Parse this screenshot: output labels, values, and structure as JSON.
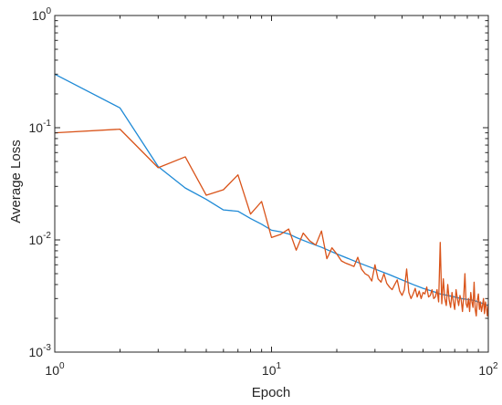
{
  "chart_data": {
    "type": "line",
    "xlabel": "Epoch",
    "ylabel": "Average Loss",
    "xscale": "log",
    "yscale": "log",
    "xlim": [
      1,
      100
    ],
    "ylim": [
      0.001,
      1
    ],
    "grid": false,
    "box": true,
    "x_ticks": [
      {
        "base": "10",
        "exp": "0"
      },
      {
        "base": "10",
        "exp": "1"
      },
      {
        "base": "10",
        "exp": "2"
      }
    ],
    "y_ticks": [
      {
        "base": "10",
        "exp": "-3"
      },
      {
        "base": "10",
        "exp": "-2"
      },
      {
        "base": "10",
        "exp": "-1"
      },
      {
        "base": "10",
        "exp": "0"
      }
    ],
    "series": [
      {
        "color": "#1f8ad6",
        "x": [
          1,
          2,
          3,
          4,
          5,
          6,
          7,
          8,
          9,
          10,
          11,
          12,
          13,
          15,
          17,
          20,
          25,
          30,
          35,
          40,
          45,
          50,
          55,
          60,
          65,
          70,
          75,
          80,
          85,
          90,
          95,
          100
        ],
        "y": [
          0.3,
          0.15,
          0.045,
          0.029,
          0.023,
          0.0185,
          0.018,
          0.0155,
          0.0138,
          0.0122,
          0.0118,
          0.0113,
          0.0105,
          0.0094,
          0.0086,
          0.0075,
          0.0063,
          0.0055,
          0.0049,
          0.0044,
          0.004,
          0.0037,
          0.0035,
          0.0033,
          0.0032,
          0.0031,
          0.003,
          0.00295,
          0.0029,
          0.0028,
          0.0027,
          0.0026
        ]
      },
      {
        "color": "#d95319",
        "x": [
          1,
          2,
          3,
          4,
          5,
          6,
          7,
          8,
          9,
          10,
          11,
          12,
          13,
          14,
          15,
          16,
          17,
          18,
          19,
          20,
          21,
          22,
          23,
          24,
          25,
          26,
          27,
          28,
          29,
          30,
          31,
          32,
          33,
          34,
          35,
          36,
          37,
          38,
          39,
          40,
          41,
          42,
          43,
          44,
          45,
          46,
          47,
          48,
          49,
          50,
          51,
          52,
          53,
          54,
          55,
          56,
          57,
          58,
          59,
          60,
          61,
          62,
          63,
          64,
          65,
          66,
          67,
          68,
          69,
          70,
          71,
          72,
          73,
          74,
          75,
          76,
          77,
          78,
          79,
          80,
          81,
          82,
          83,
          84,
          85,
          86,
          87,
          88,
          89,
          90,
          91,
          92,
          93,
          94,
          95,
          96,
          97,
          98,
          99,
          100
        ],
        "y": [
          0.09,
          0.097,
          0.044,
          0.055,
          0.025,
          0.028,
          0.038,
          0.017,
          0.022,
          0.0105,
          0.0112,
          0.0125,
          0.0081,
          0.0115,
          0.0098,
          0.009,
          0.012,
          0.0068,
          0.0085,
          0.0075,
          0.0065,
          0.0062,
          0.006,
          0.0058,
          0.007,
          0.0055,
          0.005,
          0.0048,
          0.0043,
          0.006,
          0.0045,
          0.0042,
          0.005,
          0.0041,
          0.0038,
          0.0036,
          0.004,
          0.0044,
          0.0035,
          0.0032,
          0.0036,
          0.0055,
          0.0034,
          0.003,
          0.0033,
          0.0037,
          0.0031,
          0.0035,
          0.003,
          0.0034,
          0.0033,
          0.0038,
          0.0031,
          0.0032,
          0.0036,
          0.003,
          0.0031,
          0.0036,
          0.0028,
          0.0095,
          0.0027,
          0.0045,
          0.003,
          0.0026,
          0.004,
          0.0029,
          0.0025,
          0.0034,
          0.0028,
          0.0024,
          0.0036,
          0.003,
          0.0026,
          0.0032,
          0.0029,
          0.0023,
          0.0031,
          0.005,
          0.0027,
          0.0025,
          0.003,
          0.0023,
          0.0034,
          0.0028,
          0.0025,
          0.0042,
          0.0024,
          0.0021,
          0.0029,
          0.0033,
          0.0024,
          0.0028,
          0.0023,
          0.0026,
          0.003,
          0.0022,
          0.0028,
          0.0025,
          0.0021,
          0.0027
        ]
      }
    ]
  }
}
